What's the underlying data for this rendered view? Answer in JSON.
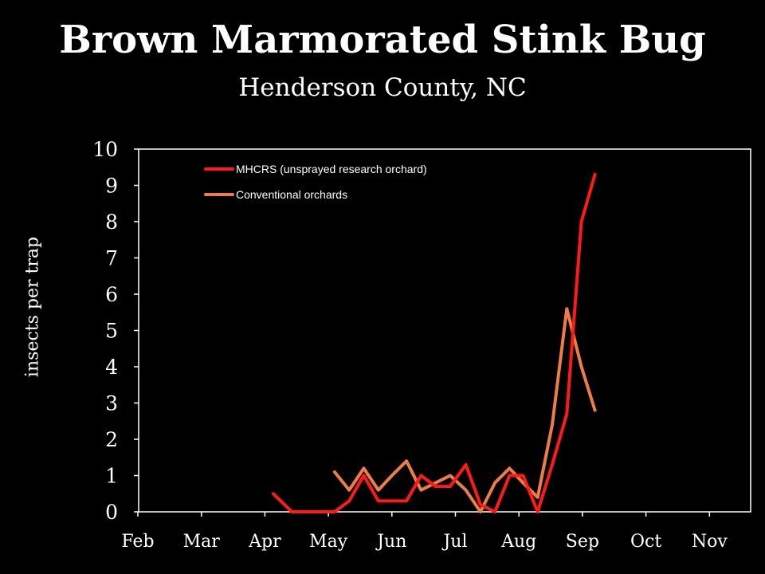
{
  "chart_data": {
    "type": "line",
    "title": "Brown Marmorated Stink Bug",
    "subtitle": "Henderson County, NC",
    "ylabel": "insects per trap",
    "xlabel": "",
    "ylim": [
      0,
      10
    ],
    "yticks": [
      "0",
      "1",
      "2",
      "3",
      "4",
      "5",
      "6",
      "7",
      "8",
      "9",
      "10"
    ],
    "x_ticks": [
      "Feb",
      "Mar",
      "Apr",
      "May",
      "Jun",
      "Jul",
      "Aug",
      "Sep",
      "Oct",
      "Nov"
    ],
    "grid": false,
    "legend_position": "top-left",
    "series": [
      {
        "name": "MHCRS (unsprayed research orchard)",
        "color": "#ff1a1a",
        "points": [
          {
            "x": "Apr 5",
            "y": 0.5
          },
          {
            "x": "Apr 14",
            "y": 0
          },
          {
            "x": "Apr 26",
            "y": 0
          },
          {
            "x": "May 4",
            "y": 0
          },
          {
            "x": "May 11",
            "y": 0.3
          },
          {
            "x": "May 18",
            "y": 1.0
          },
          {
            "x": "May 25",
            "y": 0.3
          },
          {
            "x": "Jun 1",
            "y": 0.3
          },
          {
            "x": "Jun 8",
            "y": 0.3
          },
          {
            "x": "Jun 15",
            "y": 1.0
          },
          {
            "x": "Jun 22",
            "y": 0.7
          },
          {
            "x": "Jun 29",
            "y": 0.7
          },
          {
            "x": "Jul 6",
            "y": 1.3
          },
          {
            "x": "Jul 13",
            "y": 0.2
          },
          {
            "x": "Jul 20",
            "y": 0
          },
          {
            "x": "Jul 27",
            "y": 1.0
          },
          {
            "x": "Aug 3",
            "y": 1.0
          },
          {
            "x": "Aug 10",
            "y": 0
          },
          {
            "x": "Aug 17",
            "y": 1.3
          },
          {
            "x": "Aug 24",
            "y": 2.7
          },
          {
            "x": "Aug 31",
            "y": 8.0
          },
          {
            "x": "Sep 7",
            "y": 9.3
          }
        ]
      },
      {
        "name": "Conventional orchards",
        "color": "#ed7d45",
        "points": [
          {
            "x": "May 4",
            "y": 1.1
          },
          {
            "x": "May 11",
            "y": 0.6
          },
          {
            "x": "May 18",
            "y": 1.2
          },
          {
            "x": "May 25",
            "y": 0.6
          },
          {
            "x": "Jun 1",
            "y": 1.0
          },
          {
            "x": "Jun 8",
            "y": 1.4
          },
          {
            "x": "Jun 15",
            "y": 0.6
          },
          {
            "x": "Jun 22",
            "y": 0.8
          },
          {
            "x": "Jun 29",
            "y": 1.0
          },
          {
            "x": "Jul 6",
            "y": 0.6
          },
          {
            "x": "Jul 13",
            "y": 0
          },
          {
            "x": "Jul 20",
            "y": 0.8
          },
          {
            "x": "Jul 27",
            "y": 1.2
          },
          {
            "x": "Aug 3",
            "y": 0.8
          },
          {
            "x": "Aug 10",
            "y": 0.4
          },
          {
            "x": "Aug 17",
            "y": 2.4
          },
          {
            "x": "Aug 24",
            "y": 5.6
          },
          {
            "x": "Aug 31",
            "y": 4.0
          },
          {
            "x": "Sep 7",
            "y": 2.8
          }
        ]
      }
    ]
  }
}
